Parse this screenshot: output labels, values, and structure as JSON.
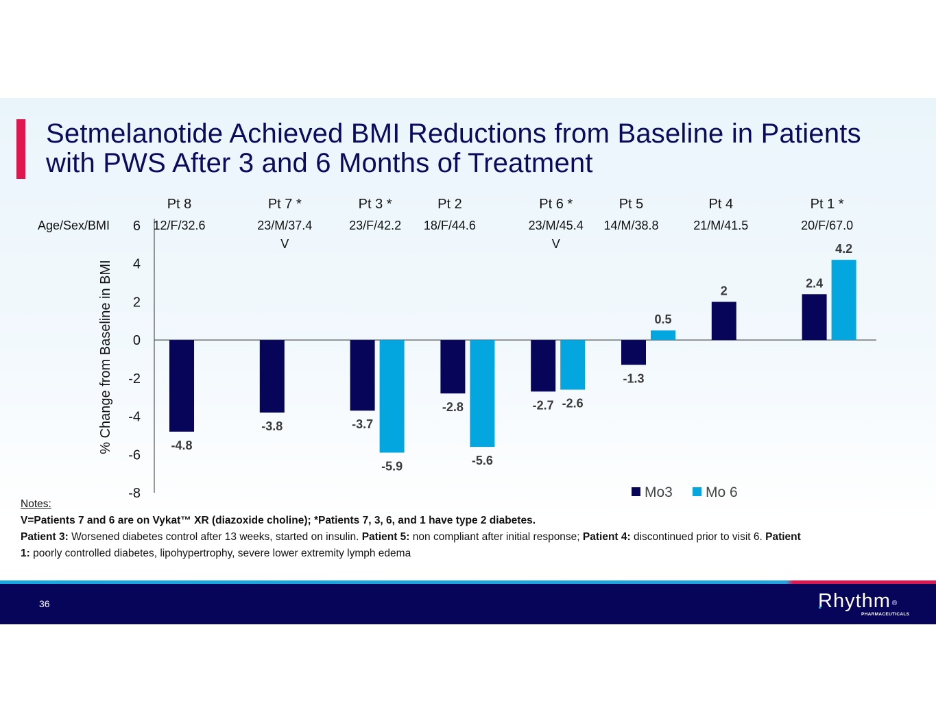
{
  "slide": {
    "title": "Setmelanotide Achieved BMI Reductions from Baseline in Patients with PWS After 3 and 6 Months of Treatment",
    "title_lines": [
      "Setmelanotide Achieved BMI Reductions from Baseline in Patients",
      "with PWS After 3 and 6 Months of Treatment"
    ],
    "page_number": "36",
    "accent_color": "#e0174f",
    "title_color": "#0b0a5c"
  },
  "chart_data": {
    "type": "bar",
    "title": "",
    "xlabel": "",
    "ylabel": "% Change from Baseline in BMI",
    "ylim": [
      -8,
      6
    ],
    "yticks": [
      "6",
      "4",
      "2",
      "0",
      "-2",
      "-4",
      "-6",
      "-8"
    ],
    "ytick_values": [
      6,
      4,
      2,
      0,
      -2,
      -4,
      -6,
      -8
    ],
    "grid": false,
    "legend_position": "bottom-right",
    "row_header": "Age/Sex/BMI",
    "categories": [
      "Pt 8",
      "Pt 7 *",
      "Pt 3 *",
      "Pt 2",
      "Pt 6 *",
      "Pt 5",
      "Pt 4",
      "Pt 1 *"
    ],
    "age_sex_bmi": [
      "12/F/32.6",
      "23/M/37.4",
      "23/F/42.2",
      "18/F/44.6",
      "23/M/45.4",
      "14/M/38.8",
      "21/M/41.5",
      "20/F/67.0"
    ],
    "vykat_marker": [
      "",
      "V",
      "",
      "",
      "V",
      "",
      "",
      ""
    ],
    "series": [
      {
        "name": "Mo3",
        "color": "#07055a",
        "values": [
          -4.8,
          -3.8,
          -3.7,
          -2.8,
          -2.7,
          -1.3,
          2,
          2.4
        ],
        "labels": [
          "-4.8",
          "-3.8",
          "-3.7",
          "-2.8",
          "-2.7",
          "-1.3",
          "2",
          "2.4"
        ]
      },
      {
        "name": "Mo 6",
        "color": "#04a6df",
        "values": [
          null,
          null,
          -5.9,
          -5.6,
          -2.6,
          0.5,
          null,
          4.2
        ],
        "labels": [
          "",
          "",
          "-5.9",
          "-5.6",
          "-2.6",
          "0.5",
          "",
          "4.2"
        ]
      }
    ]
  },
  "notes": {
    "header": "Notes:",
    "line1": "V=Patients 7 and 6 are on Vykat™ XR (diazoxide choline); *Patients 7, 3, 6, and 1 have type 2 diabetes.",
    "p3_label": "Patient 3:",
    "p3_text": " Worsened diabetes control after 13 weeks, started on insulin. ",
    "p5_label": "Patient 5:",
    "p5_text": " non compliant after initial response; ",
    "p4_label": "Patient 4:",
    "p4_text": " discontinued prior to visit 6. ",
    "p1_label": "Patient 1:",
    "p1_text": " poorly controlled diabetes, lipohypertrophy, severe lower extremity lymph edema"
  },
  "logo": {
    "name": "Rhythm",
    "registered": "®",
    "subtitle": "PHARMACEUTICALS"
  }
}
